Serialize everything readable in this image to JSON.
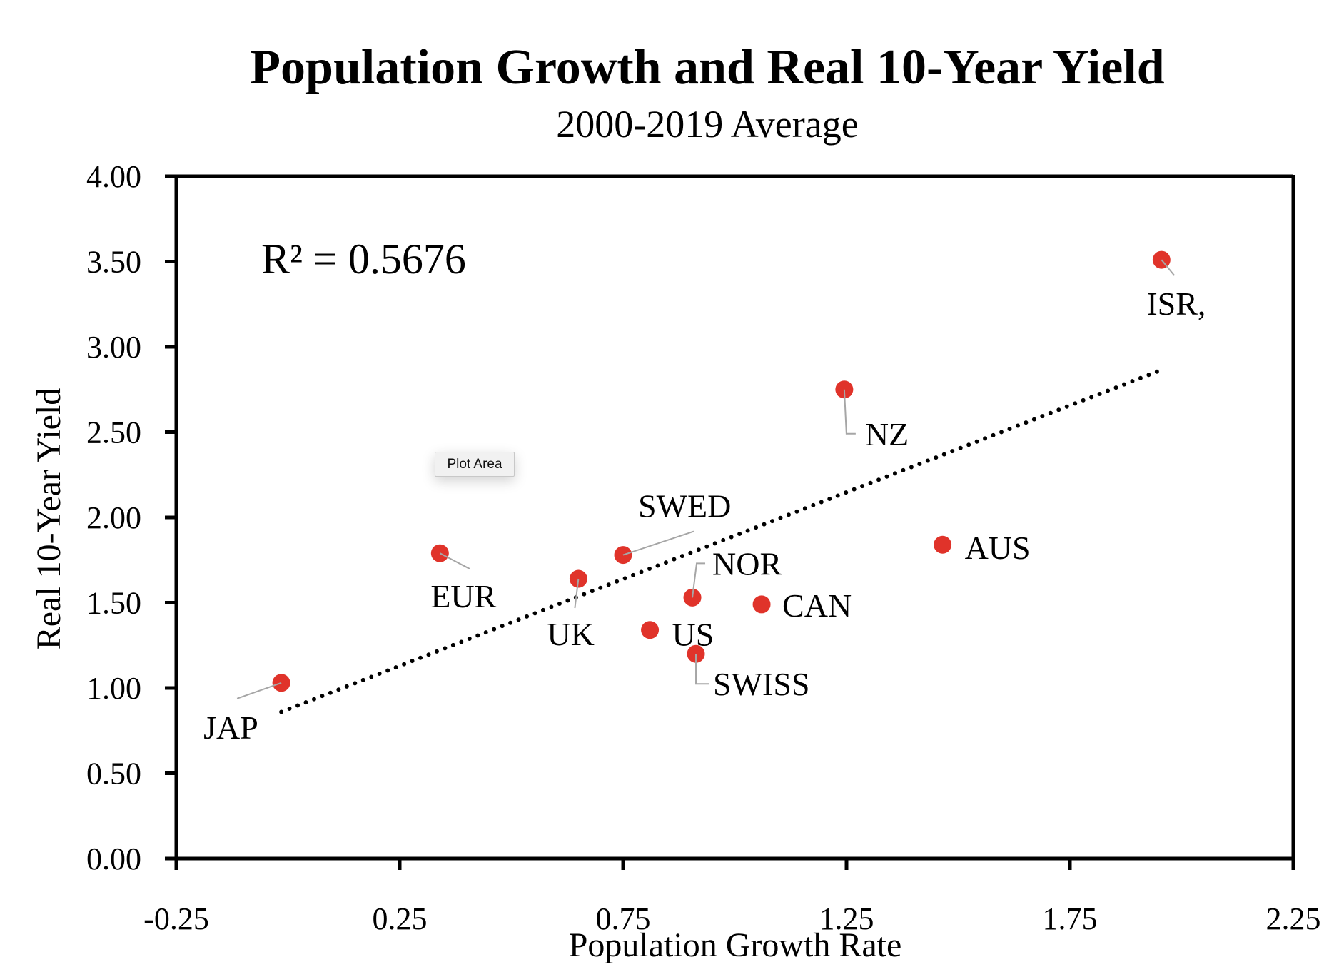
{
  "chart_data": {
    "type": "scatter",
    "title": "Population Growth and Real 10-Year Yield",
    "subtitle": "2000-2019 Average",
    "xlabel": "Population Growth Rate",
    "ylabel": "Real 10-Year Yield",
    "xlim": [
      -0.25,
      2.25
    ],
    "ylim": [
      0.0,
      4.0
    ],
    "x_ticks": [
      "-0.25",
      "0.25",
      "0.75",
      "1.25",
      "1.75",
      "2.25"
    ],
    "x_tick_values": [
      -0.25,
      0.25,
      0.75,
      1.25,
      1.75,
      2.25
    ],
    "y_ticks": [
      "0.00",
      "0.50",
      "1.00",
      "1.50",
      "2.00",
      "2.50",
      "3.00",
      "3.50",
      "4.00"
    ],
    "y_tick_values": [
      0,
      0.5,
      1.0,
      1.5,
      2.0,
      2.5,
      3.0,
      3.5,
      4.0
    ],
    "grid": false,
    "marker_color": "#e0332a",
    "points": [
      {
        "label": "JAP",
        "x": -0.015,
        "y": 1.03
      },
      {
        "label": "EUR",
        "x": 0.34,
        "y": 1.79
      },
      {
        "label": "UK",
        "x": 0.65,
        "y": 1.64
      },
      {
        "label": "SWED",
        "x": 0.75,
        "y": 1.78
      },
      {
        "label": "US",
        "x": 0.81,
        "y": 1.34
      },
      {
        "label": "NOR",
        "x": 0.905,
        "y": 1.53
      },
      {
        "label": "SWISS",
        "x": 0.913,
        "y": 1.2
      },
      {
        "label": "CAN",
        "x": 1.06,
        "y": 1.49
      },
      {
        "label": "NZ",
        "x": 1.245,
        "y": 2.75
      },
      {
        "label": "AUS",
        "x": 1.465,
        "y": 1.84
      },
      {
        "label": "ISR,",
        "x": 1.955,
        "y": 3.51
      }
    ],
    "trendline": {
      "type": "linear",
      "style": "dotted",
      "x": [
        -0.015,
        1.96
      ],
      "y": [
        0.86,
        2.87
      ],
      "r_squared_label": "R² = 0.5676"
    }
  },
  "tooltip": {
    "text": "Plot Area"
  }
}
